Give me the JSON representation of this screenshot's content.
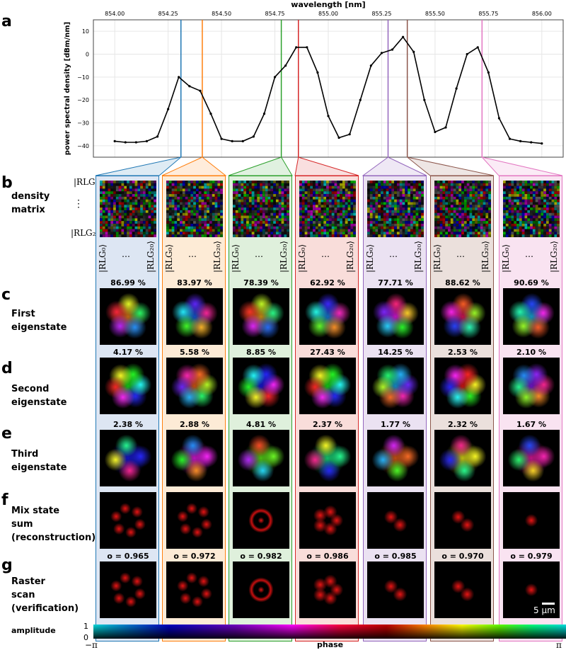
{
  "panels": {
    "a": "a",
    "b": "b",
    "c": "c",
    "d": "d",
    "e": "e",
    "f": "f",
    "g": "g"
  },
  "row_labels": {
    "b": [
      "density",
      "matrix"
    ],
    "c": [
      "First",
      "eigenstate"
    ],
    "d": [
      "Second",
      "eigenstate"
    ],
    "e": [
      "Third",
      "eigenstate"
    ],
    "f": [
      "Mix state",
      "sum",
      "(reconstruction)"
    ],
    "g": [
      "Raster",
      "scan",
      "(verification)"
    ]
  },
  "ket_labels": {
    "first": "|RLG₀⟩",
    "dots": "⋮",
    "last": "|RLG₂₀⟩",
    "hdots": "⋯"
  },
  "chart_data": {
    "type": "line",
    "xlabel": "wavelength [nm]",
    "ylabel": "power spectral density [dBm/nm]",
    "xlim": [
      853.9,
      856.1
    ],
    "ylim": [
      -45,
      15
    ],
    "xticks": [
      "854.00",
      "854.25",
      "854.50",
      "854.75",
      "855.00",
      "855.25",
      "855.50",
      "855.75",
      "856.00"
    ],
    "yticks": [
      "10",
      "0",
      "−10",
      "−20",
      "−30",
      "−40"
    ],
    "grid": true,
    "x": [
      854.0,
      854.05,
      854.1,
      854.15,
      854.2,
      854.25,
      854.3,
      854.35,
      854.4,
      854.45,
      854.5,
      854.55,
      854.6,
      854.65,
      854.7,
      854.75,
      854.8,
      854.85,
      854.9,
      854.95,
      855.0,
      855.05,
      855.1,
      855.15,
      855.2,
      855.25,
      855.3,
      855.35,
      855.4,
      855.45,
      855.5,
      855.55,
      855.6,
      855.65,
      855.7,
      855.75,
      855.8,
      855.85,
      855.9,
      855.95,
      856.0
    ],
    "y": [
      -38,
      -38.5,
      -38.5,
      -38,
      -36,
      -24,
      -10,
      -14,
      -16,
      -26,
      -37,
      -38,
      -38,
      -36,
      -26,
      -10,
      -5,
      3,
      3,
      -8,
      -27,
      -36.5,
      -35,
      -20,
      -5,
      0.5,
      2,
      7.5,
      1,
      -20,
      -34,
      -32,
      -15,
      0,
      3,
      -8,
      -28,
      -37,
      -38,
      -38.5,
      -39
    ],
    "markers": [
      {
        "x": 854.31,
        "color": "#1f77b4"
      },
      {
        "x": 854.41,
        "color": "#ff7f0e"
      },
      {
        "x": 854.78,
        "color": "#2ca02c"
      },
      {
        "x": 854.86,
        "color": "#d62728"
      },
      {
        "x": 855.28,
        "color": "#9467bd"
      },
      {
        "x": 855.37,
        "color": "#8c564b"
      },
      {
        "x": 855.72,
        "color": "#e377c2"
      }
    ]
  },
  "columns": [
    {
      "color": "#1f77b4",
      "bg": "#dde6f3",
      "p1": "86.99 %",
      "p2": "4.17 %",
      "p3": "2.38 %",
      "o": "o = 0.965",
      "h1": 210,
      "h2": 300,
      "h3": 60,
      "mix": "ring6",
      "raster": "ring6"
    },
    {
      "color": "#ff7f0e",
      "bg": "#fdebd6",
      "p1": "83.97 %",
      "p2": "5.58 %",
      "p3": "2.88 %",
      "o": "o = 0.972",
      "h1": 40,
      "h2": 200,
      "h3": 120,
      "mix": "ring6",
      "raster": "ring6"
    },
    {
      "color": "#2ca02c",
      "bg": "#dff0dc",
      "p1": "78.39 %",
      "p2": "8.85 %",
      "p3": "4.81 %",
      "o": "o = 0.982",
      "h1": 220,
      "h2": 60,
      "h3": 280,
      "mix": "donut",
      "raster": "donut"
    },
    {
      "color": "#d62728",
      "bg": "#f9ddda",
      "p1": "62.92 %",
      "p2": "27.43 %",
      "p3": "2.37 %",
      "o": "o = 0.986",
      "h1": 30,
      "h2": 300,
      "h3": 330,
      "mix": "ring4",
      "raster": "ring4"
    },
    {
      "color": "#9467bd",
      "bg": "#ebe2f2",
      "p1": "77.71 %",
      "p2": "14.25 %",
      "p3": "1.77 %",
      "o": "o = 0.985",
      "h1": 120,
      "h2": 20,
      "h3": 200,
      "mix": "pair",
      "raster": "pair"
    },
    {
      "color": "#8c564b",
      "bg": "#ebe0dc",
      "p1": "88.62 %",
      "p2": "2.53 %",
      "p3": "2.32 %",
      "o": "o = 0.970",
      "h1": 160,
      "h2": 180,
      "h3": 240,
      "mix": "pair",
      "raster": "pair"
    },
    {
      "color": "#e377c2",
      "bg": "#f9e3f1",
      "p1": "90.69 %",
      "p2": "2.10 %",
      "p3": "1.67 %",
      "o": "o = 0.979",
      "h1": 15,
      "h2": 90,
      "h3": 140,
      "mix": "spot",
      "raster": "spot"
    }
  ],
  "scalebar": "5 μm",
  "colorbar": {
    "amplitude": "amplitude",
    "amp_top": "1",
    "amp_bottom": "0",
    "phase": "phase",
    "left": "−π",
    "right": "π"
  }
}
